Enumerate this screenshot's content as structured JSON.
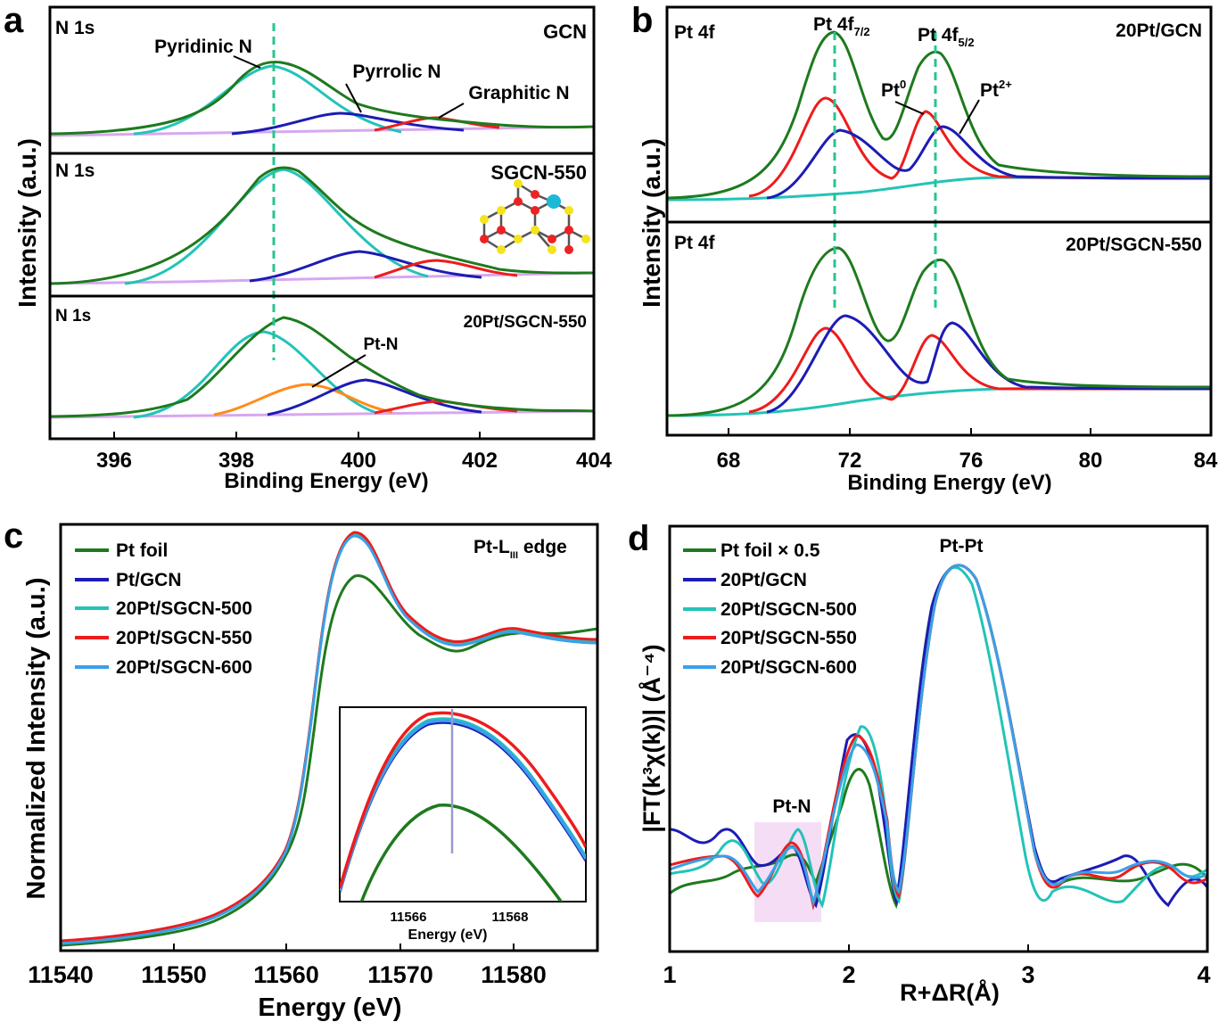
{
  "panel_a": {
    "letter": "a",
    "xlabel": "Binding Energy (eV)",
    "ylabel": "Intensity (a.u.)",
    "xticks": [
      "396",
      "398",
      "400",
      "402",
      "404"
    ],
    "subpanels": [
      {
        "label": "N 1s",
        "sample": "GCN",
        "peaks": [
          "Pyridinic N",
          "Pyrrolic N",
          "Graphitic N"
        ]
      },
      {
        "label": "N 1s",
        "sample": "SGCN-550"
      },
      {
        "label": "N 1s",
        "sample": "20Pt/SGCN-550",
        "peak": "Pt-N"
      }
    ]
  },
  "panel_b": {
    "letter": "b",
    "xlabel": "Binding Energy (eV)",
    "ylabel": "Intensity (a.u.)",
    "xticks": [
      "68",
      "72",
      "76",
      "80",
      "84"
    ],
    "peak_72_main": "Pt 4f",
    "peak_72_sub": "7/2",
    "peak_75_main": "Pt 4f",
    "peak_75_sub": "5/2",
    "pt0_main": "Pt",
    "pt0_sup": "0",
    "pt2_main": "Pt",
    "pt2_sup": "2+",
    "subpanels": [
      {
        "label": "Pt 4f",
        "sample": "20Pt/GCN"
      },
      {
        "label": "Pt 4f",
        "sample": "20Pt/SGCN-550"
      }
    ]
  },
  "panel_c": {
    "letter": "c",
    "xlabel": "Energy (eV)",
    "ylabel": "Normalized Intensity (a.u.)",
    "xticks": [
      "11540",
      "11550",
      "11560",
      "11570",
      "11580"
    ],
    "edge_main": "Pt-L",
    "edge_sub": "III",
    "edge_tail": " edge",
    "legend": [
      "Pt foil",
      "Pt/GCN",
      "20Pt/SGCN-500",
      "20Pt/SGCN-550",
      "20Pt/SGCN-600"
    ],
    "inset": {
      "xticks": [
        "11566",
        "11568"
      ],
      "xlabel": "Energy (eV)"
    }
  },
  "panel_d": {
    "letter": "d",
    "xlabel": "R+ΔR(Å)",
    "ylabel": "|FT(k³χ(k))| (Å⁻⁴)",
    "xticks": [
      "1",
      "2",
      "3",
      "4"
    ],
    "legend": [
      "Pt foil × 0.5",
      "20Pt/GCN",
      "20Pt/SGCN-500",
      "20Pt/SGCN-550",
      "20Pt/SGCN-600"
    ],
    "peak_pt_pt": "Pt-Pt",
    "peak_pt_n": "Pt-N"
  },
  "colors": {
    "green": "#1e7a1e",
    "cyan": "#23c3b8",
    "blue": "#1c1cb4",
    "red": "#ee1c1c",
    "violet": "#d7a7f0",
    "orange": "#ff8c1a",
    "lightblue": "#3aa0e8",
    "dashed": "#27c492"
  },
  "chart_data": [
    {
      "type": "line",
      "panel": "a",
      "xlim": [
        395,
        404
      ],
      "subpanel": "GCN",
      "series": [
        {
          "name": "Pyridinic N",
          "peak_x": 398.7
        },
        {
          "name": "Pyrrolic N",
          "peak_x": 399.9
        },
        {
          "name": "Graphitic N",
          "peak_x": 401.1
        }
      ]
    },
    {
      "type": "line",
      "panel": "a",
      "xlim": [
        395,
        404
      ],
      "subpanel": "SGCN-550",
      "series": [
        {
          "name": "Pyridinic N",
          "peak_x": 398.8
        },
        {
          "name": "Pyrrolic N",
          "peak_x": 400.1
        },
        {
          "name": "Graphitic N",
          "peak_x": 401.4
        }
      ]
    },
    {
      "type": "line",
      "panel": "a",
      "xlim": [
        395,
        404
      ],
      "subpanel": "20Pt/SGCN-550",
      "series": [
        {
          "name": "Pyridinic N",
          "peak_x": 398.6
        },
        {
          "name": "Pt-N",
          "peak_x": 399.3
        },
        {
          "name": "Pyrrolic N",
          "peak_x": 400.2
        },
        {
          "name": "Graphitic N",
          "peak_x": 401.5
        }
      ]
    },
    {
      "type": "line",
      "panel": "b",
      "xlim": [
        66,
        84
      ],
      "subpanel": "20Pt/GCN",
      "series": [
        {
          "name": "Pt0",
          "peaks_x": [
            71.2,
            74.5
          ]
        },
        {
          "name": "Pt2+",
          "peaks_x": [
            71.8,
            75.1
          ]
        }
      ]
    },
    {
      "type": "line",
      "panel": "b",
      "xlim": [
        66,
        84
      ],
      "subpanel": "20Pt/SGCN-550",
      "series": [
        {
          "name": "Pt0",
          "peaks_x": [
            71.1,
            74.6
          ]
        },
        {
          "name": "Pt2+",
          "peaks_x": [
            71.9,
            75.3
          ]
        }
      ]
    },
    {
      "type": "line",
      "panel": "c",
      "xlim": [
        11540,
        11587
      ],
      "inset_xlim": [
        11564.8,
        11569.5
      ],
      "series": [
        {
          "name": "Pt foil",
          "x": [
            11540,
            11550,
            11556,
            11560,
            11563,
            11565,
            11567,
            11570,
            11575,
            11580,
            11587
          ],
          "y": [
            0.01,
            0.06,
            0.14,
            0.28,
            0.5,
            0.85,
            1.12,
            0.92,
            0.84,
            0.91,
            0.92
          ]
        },
        {
          "name": "Pt/GCN",
          "x": [
            11540,
            11550,
            11556,
            11560,
            11563,
            11565,
            11567,
            11570,
            11575,
            11580,
            11587
          ],
          "y": [
            0.02,
            0.07,
            0.16,
            0.31,
            0.55,
            0.95,
            1.33,
            1.0,
            0.85,
            0.9,
            0.86
          ]
        },
        {
          "name": "20Pt/SGCN-500",
          "x": [
            11540,
            11550,
            11556,
            11560,
            11563,
            11565,
            11567,
            11570,
            11575,
            11580,
            11587
          ],
          "y": [
            0.02,
            0.07,
            0.16,
            0.31,
            0.55,
            0.95,
            1.33,
            1.0,
            0.85,
            0.9,
            0.86
          ]
        },
        {
          "name": "20Pt/SGCN-550",
          "x": [
            11540,
            11550,
            11556,
            11560,
            11563,
            11565,
            11567,
            11570,
            11575,
            11580,
            11587
          ],
          "y": [
            0.02,
            0.07,
            0.16,
            0.31,
            0.55,
            0.95,
            1.34,
            1.0,
            0.85,
            0.9,
            0.86
          ]
        },
        {
          "name": "20Pt/SGCN-600",
          "x": [
            11540,
            11550,
            11556,
            11560,
            11563,
            11565,
            11567,
            11570,
            11575,
            11580,
            11587
          ],
          "y": [
            0.02,
            0.07,
            0.16,
            0.31,
            0.55,
            0.95,
            1.33,
            1.0,
            0.85,
            0.9,
            0.86
          ]
        }
      ]
    },
    {
      "type": "line",
      "panel": "d",
      "xlim": [
        1,
        4
      ],
      "series": [
        {
          "name": "Pt foil × 0.5",
          "x": [
            1.0,
            1.3,
            1.5,
            1.7,
            1.85,
            2.05,
            2.25,
            2.4,
            2.6,
            2.8,
            3.0,
            3.15,
            3.5,
            3.9,
            4.0
          ],
          "y": [
            0.35,
            0.5,
            0.55,
            0.7,
            0.15,
            1.6,
            0.2,
            1.8,
            3.5,
            2.6,
            1.0,
            0.1,
            0.5,
            0.45,
            0.4
          ]
        },
        {
          "name": "20Pt/GCN",
          "x": [
            1.0,
            1.3,
            1.5,
            1.7,
            1.8,
            2.05,
            2.25,
            2.4,
            2.6,
            2.8,
            3.0,
            3.15,
            3.5,
            3.8,
            4.0
          ],
          "y": [
            0.8,
            0.7,
            0.45,
            0.6,
            0.05,
            1.8,
            0.3,
            2.1,
            3.5,
            2.4,
            1.0,
            0.3,
            0.55,
            0.15,
            0.45
          ]
        },
        {
          "name": "20Pt/SGCN-500",
          "x": [
            1.0,
            1.35,
            1.5,
            1.72,
            1.85,
            2.08,
            2.27,
            2.4,
            2.6,
            2.8,
            3.0,
            3.1,
            3.5,
            3.8,
            4.0
          ],
          "y": [
            0.4,
            0.75,
            0.3,
            0.85,
            0.05,
            2.0,
            0.15,
            1.6,
            3.5,
            2.0,
            0.6,
            0.05,
            0.25,
            0.55,
            0.3
          ]
        },
        {
          "name": "20Pt/SGCN-550",
          "x": [
            1.0,
            1.3,
            1.48,
            1.65,
            1.8,
            2.05,
            2.25,
            2.4,
            2.6,
            2.8,
            3.0,
            3.15,
            3.5,
            3.8,
            4.0
          ],
          "y": [
            0.5,
            0.55,
            0.2,
            0.75,
            0.05,
            1.9,
            0.2,
            2.0,
            3.5,
            2.5,
            1.0,
            0.2,
            0.45,
            0.3,
            0.35
          ]
        },
        {
          "name": "20Pt/SGCN-600",
          "x": [
            1.0,
            1.3,
            1.48,
            1.65,
            1.8,
            2.05,
            2.25,
            2.4,
            2.6,
            2.8,
            3.0,
            3.15,
            3.5,
            3.8,
            4.0
          ],
          "y": [
            0.45,
            0.6,
            0.25,
            0.7,
            0.1,
            1.75,
            0.25,
            2.0,
            3.5,
            2.45,
            1.0,
            0.25,
            0.5,
            0.35,
            0.4
          ]
        }
      ]
    }
  ]
}
